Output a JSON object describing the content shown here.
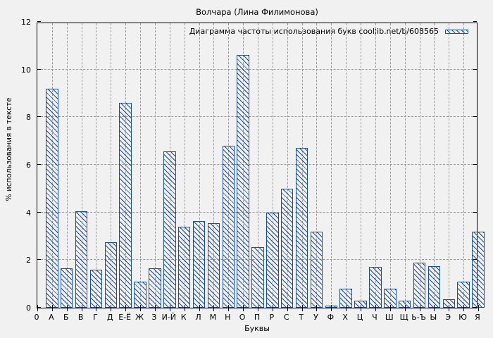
{
  "colors": {
    "background": "#f1f1f1",
    "bar": "#1b4b9e",
    "grid": "#9a9a9a",
    "axis": "#000000"
  },
  "chart_data": {
    "type": "bar",
    "title": "Волчара (Лина Филимонова)",
    "legend": "Диаграмма частоты использования букв coollib.net/b/608565",
    "legend_position": "top-right",
    "xlabel": "Буквы",
    "ylabel": "% использования в тексте",
    "ylim": [
      0,
      12
    ],
    "yticks": [
      0,
      2,
      4,
      6,
      8,
      10,
      12
    ],
    "x_origin_label": "0",
    "grid": true,
    "bar_style": "blue diagonal hatch",
    "categories": [
      "А",
      "Б",
      "В",
      "Г",
      "Д",
      "Е-Ё",
      "Ж",
      "З",
      "И-Й",
      "К",
      "Л",
      "М",
      "Н",
      "О",
      "П",
      "Р",
      "С",
      "Т",
      "У",
      "Ф",
      "Х",
      "Ц",
      "Ч",
      "Ш",
      "Щ",
      "Ь-Ъ",
      "Ы",
      "Э",
      "Ю",
      "Я"
    ],
    "values": [
      9.2,
      1.65,
      4.05,
      1.6,
      2.75,
      8.6,
      1.1,
      1.65,
      6.55,
      3.4,
      3.65,
      3.55,
      6.8,
      10.6,
      2.55,
      4.0,
      5.0,
      6.7,
      3.2,
      0.1,
      0.8,
      0.3,
      1.7,
      0.8,
      0.3,
      1.9,
      1.75,
      0.35,
      1.1,
      3.2
    ]
  }
}
